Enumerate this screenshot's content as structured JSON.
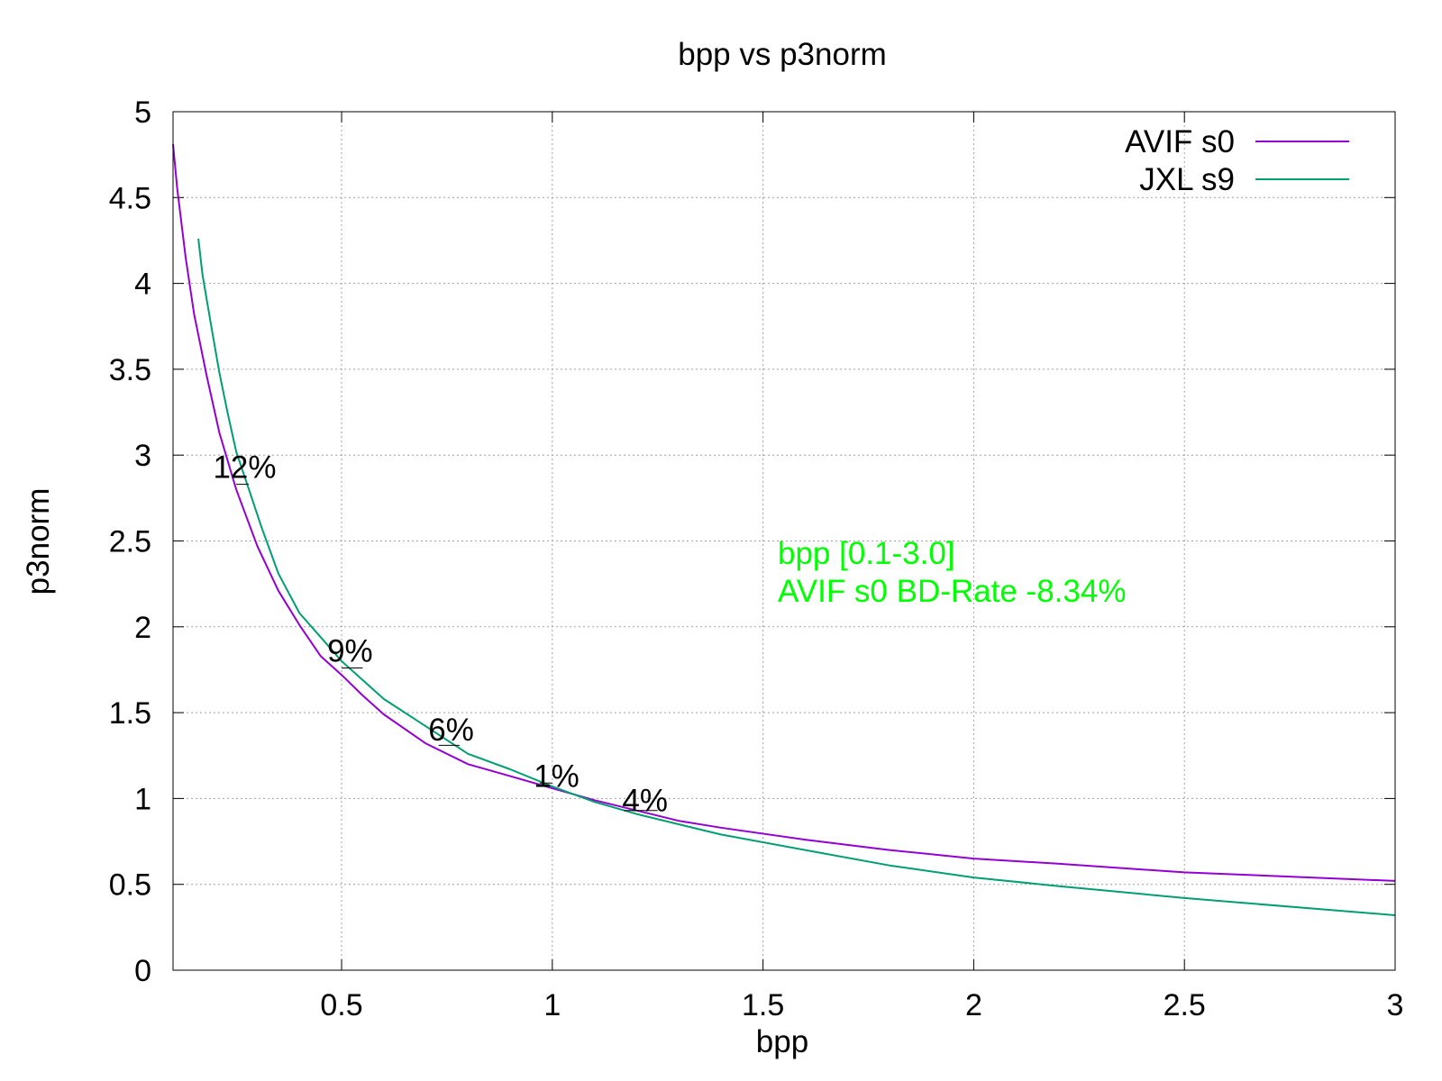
{
  "chart_data": {
    "type": "line",
    "title": "bpp vs p3norm",
    "xlabel": "bpp",
    "ylabel": "p3norm",
    "xlim": [
      0.1,
      3.0
    ],
    "ylim": [
      0,
      5
    ],
    "grid": true,
    "legend_position": "top-right",
    "xticks": [
      {
        "value": 0.5,
        "label": "0.5"
      },
      {
        "value": 1.0,
        "label": "1"
      },
      {
        "value": 1.5,
        "label": "1.5"
      },
      {
        "value": 2.0,
        "label": "2"
      },
      {
        "value": 2.5,
        "label": "2.5"
      },
      {
        "value": 3.0,
        "label": "3"
      }
    ],
    "yticks": [
      {
        "value": 0,
        "label": "0"
      },
      {
        "value": 0.5,
        "label": "0.5"
      },
      {
        "value": 1.0,
        "label": "1"
      },
      {
        "value": 1.5,
        "label": "1.5"
      },
      {
        "value": 2.0,
        "label": "2"
      },
      {
        "value": 2.5,
        "label": "2.5"
      },
      {
        "value": 3.0,
        "label": "3"
      },
      {
        "value": 3.5,
        "label": "3.5"
      },
      {
        "value": 4.0,
        "label": "4"
      },
      {
        "value": 4.5,
        "label": "4.5"
      },
      {
        "value": 5.0,
        "label": "5"
      }
    ],
    "series": [
      {
        "name": "AVIF s0",
        "color": "#9400d3",
        "x": [
          0.1,
          0.11,
          0.13,
          0.15,
          0.18,
          0.21,
          0.25,
          0.3,
          0.35,
          0.4,
          0.45,
          0.5,
          0.55,
          0.6,
          0.7,
          0.8,
          0.9,
          1.0,
          1.1,
          1.2,
          1.3,
          1.4,
          1.6,
          1.8,
          2.0,
          2.2,
          2.5,
          2.8,
          3.0
        ],
        "y": [
          4.81,
          4.55,
          4.15,
          3.82,
          3.46,
          3.13,
          2.8,
          2.47,
          2.21,
          2.01,
          1.83,
          1.72,
          1.6,
          1.49,
          1.32,
          1.2,
          1.13,
          1.06,
          0.99,
          0.93,
          0.87,
          0.83,
          0.76,
          0.7,
          0.65,
          0.62,
          0.57,
          0.54,
          0.52
        ]
      },
      {
        "name": "JXL s9",
        "color": "#009e73",
        "x": [
          0.16,
          0.17,
          0.19,
          0.21,
          0.23,
          0.25,
          0.28,
          0.31,
          0.35,
          0.4,
          0.45,
          0.5,
          0.55,
          0.6,
          0.7,
          0.8,
          0.9,
          1.0,
          1.1,
          1.2,
          1.3,
          1.4,
          1.6,
          1.8,
          2.0,
          2.2,
          2.5,
          2.8,
          3.0
        ],
        "y": [
          4.26,
          4.05,
          3.76,
          3.48,
          3.24,
          3.02,
          2.8,
          2.58,
          2.31,
          2.08,
          1.94,
          1.8,
          1.69,
          1.58,
          1.42,
          1.26,
          1.17,
          1.07,
          0.98,
          0.91,
          0.85,
          0.79,
          0.7,
          0.61,
          0.54,
          0.49,
          0.42,
          0.36,
          0.32
        ]
      }
    ],
    "annotations": [
      {
        "text": "12%",
        "x": 0.27,
        "y": 2.93,
        "seg_x": [
          0.25,
          0.28
        ],
        "seg_y": 2.83
      },
      {
        "text": "9%",
        "x": 0.52,
        "y": 1.86,
        "seg_x": [
          0.5,
          0.55
        ],
        "seg_y": 1.76
      },
      {
        "text": "6%",
        "x": 0.76,
        "y": 1.4,
        "seg_x": [
          0.73,
          0.78
        ],
        "seg_y": 1.31
      },
      {
        "text": "1%",
        "x": 1.01,
        "y": 1.13,
        "seg_x": [
          0.97,
          1.0
        ],
        "seg_y": 1.09
      },
      {
        "text": "4%",
        "x": 1.22,
        "y": 0.99,
        "seg_x": [
          1.17,
          1.25
        ],
        "seg_y": 0.93
      }
    ],
    "note": {
      "color": "#00ff00",
      "lines": [
        "bpp [0.1-3.0]",
        "AVIF s0 BD-Rate -8.34%"
      ]
    }
  }
}
